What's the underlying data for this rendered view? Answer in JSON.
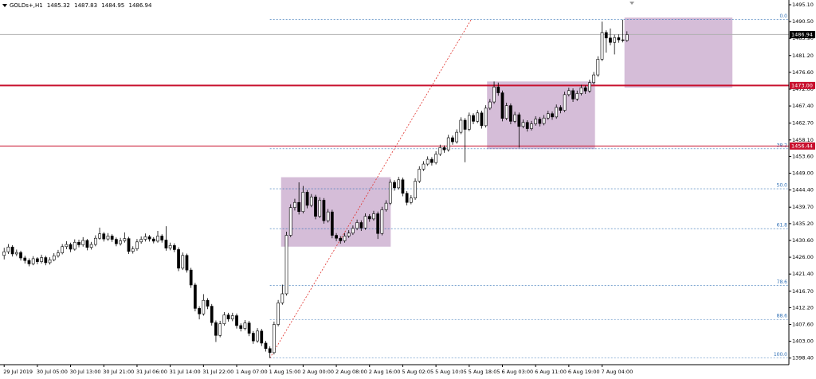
{
  "chart_data": {
    "type": "candlestick",
    "symbol": "GOLDs+,H1",
    "categories": [
      "29 Jul 2019",
      null,
      null,
      null,
      null,
      null,
      null,
      null,
      "30 Jul 05:00",
      null,
      null,
      null,
      null,
      null,
      null,
      null,
      "30 Jul 13:00",
      null,
      null,
      null,
      null,
      null,
      null,
      null,
      "30 Jul 21:00",
      null,
      null,
      null,
      null,
      null,
      null,
      null,
      "31 Jul 06:00",
      null,
      null,
      null,
      null,
      null,
      null,
      null,
      "31 Jul 14:00",
      null,
      null,
      null,
      null,
      null,
      null,
      null,
      "31 Jul 22:00",
      null,
      null,
      null,
      null,
      null,
      null,
      null,
      "1 Aug 07:00",
      null,
      null,
      null,
      null,
      null,
      null,
      null,
      "1 Aug 15:00",
      null,
      null,
      null,
      null,
      null,
      null,
      null,
      "2 Aug 00:00",
      null,
      null,
      null,
      null,
      null,
      null,
      null,
      "2 Aug 08:00",
      null,
      null,
      null,
      null,
      null,
      null,
      null,
      "2 Aug 16:00",
      null,
      null,
      null,
      null,
      null,
      null,
      null,
      "5 Aug 02:05",
      null,
      null,
      null,
      null,
      null,
      null,
      null,
      "5 Aug 10:05",
      null,
      null,
      null,
      null,
      null,
      null,
      null,
      "5 Aug 18:05",
      null,
      null,
      null,
      null,
      null,
      null,
      null,
      "6 Aug 03:00",
      null,
      null,
      null,
      null,
      null,
      null,
      null,
      "6 Aug 11:00",
      null,
      null,
      null,
      null,
      null,
      null,
      null,
      "6 Aug 19:00",
      null,
      null,
      null,
      null,
      null,
      null,
      null,
      "7 Aug 04:00",
      null,
      null,
      null,
      null,
      null,
      null
    ],
    "ohlc": [
      [
        1426.5,
        1428.6,
        1425.4,
        1427.5
      ],
      [
        1427.5,
        1429.6,
        1426.9,
        1428.8
      ],
      [
        1428.8,
        1429.3,
        1426.2,
        1426.9
      ],
      [
        1426.9,
        1428.1,
        1426.3,
        1427.3
      ],
      [
        1427.3,
        1427.8,
        1425.1,
        1425.8
      ],
      [
        1425.8,
        1426.4,
        1424.3,
        1425.1
      ],
      [
        1425.1,
        1425.7,
        1423.5,
        1424.2
      ],
      [
        1424.2,
        1426.3,
        1423.8,
        1425.6
      ],
      [
        1425.6,
        1426.0,
        1424.1,
        1424.8
      ],
      [
        1424.8,
        1426.7,
        1424.3,
        1425.9
      ],
      [
        1425.9,
        1426.4,
        1423.8,
        1424.5
      ],
      [
        1424.5,
        1426.0,
        1424.0,
        1425.3
      ],
      [
        1425.3,
        1427.1,
        1424.9,
        1426.4
      ],
      [
        1426.4,
        1428.0,
        1425.9,
        1427.2
      ],
      [
        1427.2,
        1429.6,
        1426.8,
        1428.9
      ],
      [
        1428.9,
        1430.4,
        1428.2,
        1429.5
      ],
      [
        1429.5,
        1430.0,
        1427.4,
        1428.2
      ],
      [
        1428.2,
        1430.9,
        1427.8,
        1430.1
      ],
      [
        1430.1,
        1430.8,
        1428.7,
        1429.4
      ],
      [
        1429.4,
        1431.5,
        1428.9,
        1430.6
      ],
      [
        1430.6,
        1431.0,
        1427.9,
        1428.7
      ],
      [
        1428.7,
        1430.2,
        1428.1,
        1429.5
      ],
      [
        1429.5,
        1432.0,
        1429.0,
        1431.2
      ],
      [
        1431.2,
        1434.1,
        1430.8,
        1432.4
      ],
      [
        1432.4,
        1432.9,
        1430.3,
        1431.0
      ],
      [
        1431.0,
        1432.6,
        1430.5,
        1431.8
      ],
      [
        1431.8,
        1432.3,
        1430.2,
        1430.9
      ],
      [
        1430.9,
        1431.4,
        1429.0,
        1429.7
      ],
      [
        1429.7,
        1431.3,
        1429.2,
        1430.5
      ],
      [
        1430.5,
        1432.8,
        1430.0,
        1431.1
      ],
      [
        1431.1,
        1431.6,
        1426.9,
        1427.6
      ],
      [
        1427.6,
        1429.0,
        1427.0,
        1428.3
      ],
      [
        1428.3,
        1431.0,
        1427.8,
        1430.2
      ],
      [
        1430.2,
        1431.7,
        1429.7,
        1430.9
      ],
      [
        1430.9,
        1432.5,
        1430.3,
        1431.6
      ],
      [
        1431.6,
        1432.1,
        1430.3,
        1431.0
      ],
      [
        1431.0,
        1431.5,
        1429.8,
        1430.4
      ],
      [
        1430.4,
        1433.2,
        1430.0,
        1431.8
      ],
      [
        1431.8,
        1432.3,
        1430.0,
        1430.7
      ],
      [
        1430.7,
        1434.5,
        1427.8,
        1428.5
      ],
      [
        1428.5,
        1430.0,
        1427.9,
        1429.2
      ],
      [
        1429.2,
        1429.8,
        1427.4,
        1428.1
      ],
      [
        1428.1,
        1428.7,
        1422.2,
        1423.0
      ],
      [
        1423.0,
        1427.3,
        1422.5,
        1426.5
      ],
      [
        1426.5,
        1427.0,
        1421.8,
        1422.5
      ],
      [
        1422.5,
        1423.1,
        1417.6,
        1418.4
      ],
      [
        1418.4,
        1419.0,
        1411.2,
        1412.0
      ],
      [
        1412.0,
        1412.6,
        1409.0,
        1410.5
      ],
      [
        1410.5,
        1415.9,
        1410.0,
        1414.2
      ],
      [
        1414.2,
        1414.8,
        1411.8,
        1412.6
      ],
      [
        1412.6,
        1413.2,
        1407.3,
        1408.1
      ],
      [
        1408.1,
        1408.7,
        1402.8,
        1404.6
      ],
      [
        1404.6,
        1408.6,
        1404.1,
        1407.8
      ],
      [
        1407.8,
        1411.0,
        1407.3,
        1410.2
      ],
      [
        1410.2,
        1410.8,
        1408.4,
        1409.1
      ],
      [
        1409.1,
        1410.8,
        1408.5,
        1410.0
      ],
      [
        1410.0,
        1410.6,
        1406.5,
        1407.3
      ],
      [
        1407.3,
        1407.9,
        1405.7,
        1406.5
      ],
      [
        1406.5,
        1408.8,
        1406.0,
        1408.0
      ],
      [
        1408.0,
        1408.6,
        1404.4,
        1405.2
      ],
      [
        1405.2,
        1405.8,
        1402.3,
        1403.1
      ],
      [
        1403.1,
        1406.6,
        1402.6,
        1405.8
      ],
      [
        1405.8,
        1406.4,
        1401.7,
        1402.5
      ],
      [
        1402.5,
        1403.1,
        1400.2,
        1401.0
      ],
      [
        1401.0,
        1401.6,
        1398.4,
        1399.9
      ],
      [
        1399.9,
        1408.4,
        1399.4,
        1407.6
      ],
      [
        1407.6,
        1414.3,
        1407.1,
        1413.5
      ],
      [
        1413.5,
        1418.5,
        1413.0,
        1416.0
      ],
      [
        1416.0,
        1433.0,
        1415.5,
        1432.0
      ],
      [
        1432.0,
        1440.5,
        1431.5,
        1439.6
      ],
      [
        1439.6,
        1442.0,
        1438.8,
        1441.0
      ],
      [
        1441.0,
        1446.5,
        1437.7,
        1438.5
      ],
      [
        1438.5,
        1445.5,
        1438.0,
        1443.8
      ],
      [
        1443.8,
        1444.4,
        1439.4,
        1440.2
      ],
      [
        1440.2,
        1443.3,
        1439.7,
        1442.5
      ],
      [
        1442.5,
        1443.1,
        1436.4,
        1437.2
      ],
      [
        1437.2,
        1442.4,
        1436.7,
        1441.6
      ],
      [
        1441.6,
        1442.2,
        1435.2,
        1436.0
      ],
      [
        1436.0,
        1439.2,
        1435.5,
        1438.4
      ],
      [
        1438.4,
        1439.0,
        1431.2,
        1432.0
      ],
      [
        1432.0,
        1432.6,
        1430.4,
        1431.2
      ],
      [
        1431.2,
        1431.8,
        1429.7,
        1430.5
      ],
      [
        1430.5,
        1432.6,
        1430.0,
        1431.8
      ],
      [
        1431.8,
        1433.4,
        1431.3,
        1432.6
      ],
      [
        1432.6,
        1434.7,
        1432.1,
        1433.9
      ],
      [
        1433.9,
        1436.3,
        1433.4,
        1435.5
      ],
      [
        1435.5,
        1436.1,
        1433.2,
        1434.0
      ],
      [
        1434.0,
        1438.0,
        1433.5,
        1437.2
      ],
      [
        1437.2,
        1437.8,
        1435.7,
        1436.5
      ],
      [
        1436.5,
        1438.7,
        1436.0,
        1437.9
      ],
      [
        1437.9,
        1438.5,
        1431.0,
        1432.5
      ],
      [
        1432.5,
        1439.8,
        1432.0,
        1439.0
      ],
      [
        1439.0,
        1441.6,
        1438.5,
        1440.8
      ],
      [
        1440.8,
        1447.3,
        1440.3,
        1446.5
      ],
      [
        1446.5,
        1447.1,
        1444.2,
        1445.0
      ],
      [
        1445.0,
        1448.0,
        1444.5,
        1447.2
      ],
      [
        1447.2,
        1447.8,
        1442.7,
        1443.5
      ],
      [
        1443.5,
        1444.1,
        1440.2,
        1441.0
      ],
      [
        1441.0,
        1443.0,
        1440.5,
        1442.2
      ],
      [
        1442.2,
        1447.6,
        1441.7,
        1446.8
      ],
      [
        1446.8,
        1450.9,
        1446.3,
        1450.1
      ],
      [
        1450.1,
        1452.3,
        1449.6,
        1451.5
      ],
      [
        1451.5,
        1453.6,
        1451.0,
        1452.8
      ],
      [
        1452.8,
        1453.4,
        1451.1,
        1451.9
      ],
      [
        1451.9,
        1455.0,
        1451.4,
        1454.2
      ],
      [
        1454.2,
        1456.8,
        1453.7,
        1456.0
      ],
      [
        1456.0,
        1456.6,
        1454.6,
        1455.4
      ],
      [
        1455.4,
        1459.5,
        1454.9,
        1458.7
      ],
      [
        1458.7,
        1459.3,
        1456.8,
        1457.6
      ],
      [
        1457.6,
        1461.0,
        1457.1,
        1460.2
      ],
      [
        1460.2,
        1464.3,
        1459.7,
        1463.5
      ],
      [
        1463.5,
        1464.1,
        1452.0,
        1461.0
      ],
      [
        1461.0,
        1465.6,
        1460.5,
        1464.8
      ],
      [
        1464.8,
        1465.4,
        1462.4,
        1463.2
      ],
      [
        1463.2,
        1466.3,
        1462.7,
        1465.5
      ],
      [
        1465.5,
        1466.1,
        1461.2,
        1462.0
      ],
      [
        1462.0,
        1467.6,
        1461.5,
        1466.8
      ],
      [
        1466.8,
        1469.3,
        1466.3,
        1468.5
      ],
      [
        1468.5,
        1474.1,
        1468.0,
        1472.6
      ],
      [
        1472.6,
        1473.8,
        1470.2,
        1471.0
      ],
      [
        1471.0,
        1471.6,
        1463.2,
        1464.0
      ],
      [
        1464.0,
        1468.3,
        1463.5,
        1467.5
      ],
      [
        1467.5,
        1468.1,
        1462.4,
        1463.2
      ],
      [
        1463.2,
        1465.8,
        1462.7,
        1465.0
      ],
      [
        1465.0,
        1465.6,
        1456.0,
        1461.8
      ],
      [
        1461.8,
        1463.7,
        1461.3,
        1462.9
      ],
      [
        1462.9,
        1463.5,
        1460.4,
        1461.2
      ],
      [
        1461.2,
        1463.3,
        1460.7,
        1462.5
      ],
      [
        1462.5,
        1464.6,
        1462.0,
        1463.8
      ],
      [
        1463.8,
        1464.4,
        1461.8,
        1462.6
      ],
      [
        1462.6,
        1464.9,
        1462.1,
        1464.1
      ],
      [
        1464.1,
        1466.1,
        1463.6,
        1465.3
      ],
      [
        1465.3,
        1465.9,
        1463.6,
        1464.4
      ],
      [
        1464.4,
        1467.8,
        1463.9,
        1467.0
      ],
      [
        1467.0,
        1467.6,
        1465.4,
        1466.2
      ],
      [
        1466.2,
        1471.3,
        1465.7,
        1470.5
      ],
      [
        1470.5,
        1472.4,
        1470.0,
        1471.6
      ],
      [
        1471.6,
        1472.2,
        1468.5,
        1469.3
      ],
      [
        1469.3,
        1471.6,
        1468.8,
        1470.8
      ],
      [
        1470.8,
        1473.2,
        1470.3,
        1472.4
      ],
      [
        1472.4,
        1473.0,
        1470.7,
        1471.5
      ],
      [
        1471.5,
        1474.6,
        1471.0,
        1473.8
      ],
      [
        1473.8,
        1476.7,
        1473.3,
        1475.9
      ],
      [
        1475.9,
        1481.0,
        1475.4,
        1480.2
      ],
      [
        1480.2,
        1490.5,
        1479.7,
        1487.5
      ],
      [
        1487.5,
        1488.1,
        1482.0,
        1486.0
      ],
      [
        1486.0,
        1488.6,
        1484.0,
        1484.8
      ],
      [
        1484.8,
        1486.9,
        1481.5,
        1486.1
      ],
      [
        1486.1,
        1487.0,
        1484.7,
        1485.5
      ],
      [
        1485.5,
        1491.0,
        1484.8,
        1485.32
      ],
      [
        1485.32,
        1487.83,
        1484.95,
        1486.94
      ]
    ],
    "xlim": [
      -1,
      189
    ],
    "ylim": [
      1396.6,
      1496.4
    ],
    "yticks": [
      {
        "value": 1495.1,
        "label": "1495.10"
      },
      {
        "value": 1490.5,
        "label": "1490.50"
      },
      {
        "value": 1485.9,
        "label": "1485.90"
      },
      {
        "value": 1481.2,
        "label": "1481.20"
      },
      {
        "value": 1476.6,
        "label": "1476.60"
      },
      {
        "value": 1472.0,
        "label": "1472.00"
      },
      {
        "value": 1467.4,
        "label": "1467.40"
      },
      {
        "value": 1462.7,
        "label": "1462.70"
      },
      {
        "value": 1458.1,
        "label": "1458.10"
      },
      {
        "value": 1453.6,
        "label": "1453.60"
      },
      {
        "value": 1449.0,
        "label": "1449.00"
      },
      {
        "value": 1444.4,
        "label": "1444.40"
      },
      {
        "value": 1439.7,
        "label": "1439.70"
      },
      {
        "value": 1435.2,
        "label": "1435.20"
      },
      {
        "value": 1430.6,
        "label": "1430.60"
      },
      {
        "value": 1426.0,
        "label": "1426.00"
      },
      {
        "value": 1421.4,
        "label": "1421.40"
      },
      {
        "value": 1416.7,
        "label": "1416.70"
      },
      {
        "value": 1412.2,
        "label": "1412.20"
      },
      {
        "value": 1407.6,
        "label": "1407.60"
      },
      {
        "value": 1403.0,
        "label": "1403.00"
      },
      {
        "value": 1398.4,
        "label": "1398.40"
      }
    ],
    "hlines": [
      {
        "value": 1486.94,
        "label": "1486.94",
        "color": "#b0b0b0",
        "width": 1,
        "label_bg": "#000000"
      },
      {
        "value": 1473.0,
        "label": "1473.00",
        "color": "#c8102e",
        "width": 2,
        "label_bg": "#c8102e"
      },
      {
        "value": 1456.44,
        "label": "1456.44",
        "color": "#c8102e",
        "width": 1,
        "label_bg": "#c8102e"
      }
    ],
    "rectangles": [
      {
        "x": [
          66.7,
          93.1
        ],
        "y": [
          1428.9,
          1447.9
        ]
      },
      {
        "x": [
          116.3,
          142.3
        ],
        "y": [
          1455.6,
          1474.1
        ]
      },
      {
        "x": [
          149.4,
          175.4
        ],
        "y": [
          1472.4,
          1491.6
        ]
      }
    ],
    "rect_color": "#d5bdd8",
    "fibo": {
      "from": [
        64,
        1398.4
      ],
      "to": [
        112.5,
        1491.1
      ],
      "color": "#2f6fb5",
      "levels": [
        {
          "value": 0,
          "label": "0.0"
        },
        {
          "value": 38.2,
          "label": "38.2"
        },
        {
          "value": 50,
          "label": "50.0"
        },
        {
          "value": 61.8,
          "label": "61.8"
        },
        {
          "value": 78.6,
          "label": "78.6"
        },
        {
          "value": 88.6,
          "label": "88.6"
        },
        {
          "value": 100,
          "label": "100.0"
        }
      ]
    },
    "trend_color": "#e0302b",
    "up_color": "#ffffff",
    "down_color": "#000000"
  }
}
